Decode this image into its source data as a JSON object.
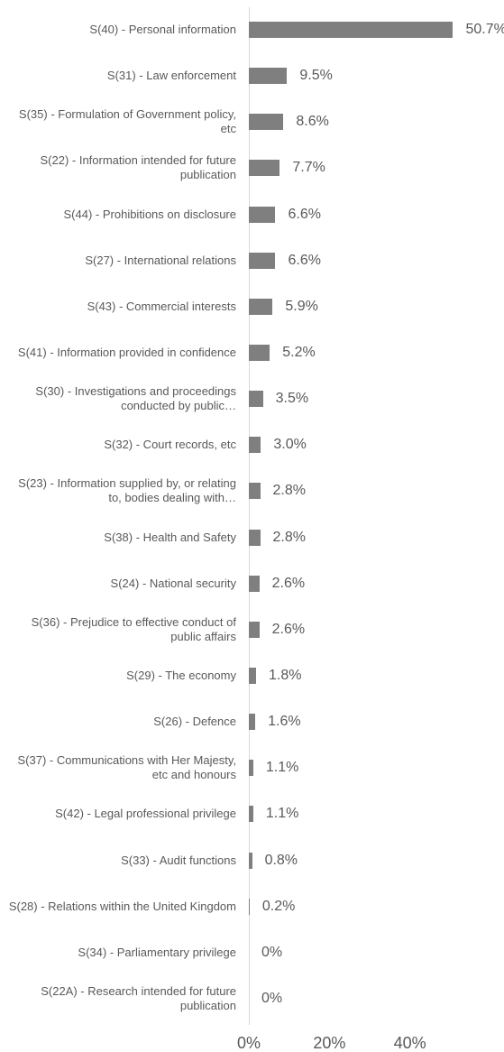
{
  "chart_data": {
    "type": "bar",
    "orientation": "horizontal",
    "color": "#7f7f7f",
    "grid": false,
    "categories": [
      "S(40) - Personal information",
      "S(31) - Law enforcement",
      "S(35) - Formulation of Government policy, etc",
      "S(22) - Information intended for future publication",
      "S(44) - Prohibitions on disclosure",
      "S(27) - International relations",
      "S(43) - Commercial interests",
      "S(41) - Information provided in confidence",
      "S(30) - Investigations and proceedings conducted by public…",
      "S(32) - Court records, etc",
      "S(23) - Information supplied by, or relating to, bodies dealing with…",
      "S(38) - Health and Safety",
      "S(24) - National security",
      "S(36) - Prejudice to effective conduct of public affairs",
      "S(29) - The economy",
      "S(26) - Defence",
      "S(37) - Communications with Her Majesty, etc and honours",
      "S(42) - Legal professional privilege",
      "S(33) - Audit functions",
      "S(28) - Relations within the United Kingdom",
      "S(34) - Parliamentary privilege",
      "S(22A) - Research intended for future publication"
    ],
    "values": [
      50.7,
      9.5,
      8.6,
      7.7,
      6.6,
      6.6,
      5.9,
      5.2,
      3.5,
      3.0,
      2.8,
      2.8,
      2.6,
      2.6,
      1.8,
      1.6,
      1.1,
      1.1,
      0.8,
      0.2,
      0,
      0
    ],
    "value_labels": [
      "50.7%",
      "9.5%",
      "8.6%",
      "7.7%",
      "6.6%",
      "6.6%",
      "5.9%",
      "5.2%",
      "3.5%",
      "3.0%",
      "2.8%",
      "2.8%",
      "2.6%",
      "2.6%",
      "1.8%",
      "1.6%",
      "1.1%",
      "1.1%",
      "0.8%",
      "0.2%",
      "0%",
      "0%"
    ],
    "xlim": [
      0,
      60
    ],
    "xticks": [
      {
        "value": 0,
        "label": "0%"
      },
      {
        "value": 20,
        "label": "20%"
      },
      {
        "value": 40,
        "label": "40%"
      }
    ]
  }
}
